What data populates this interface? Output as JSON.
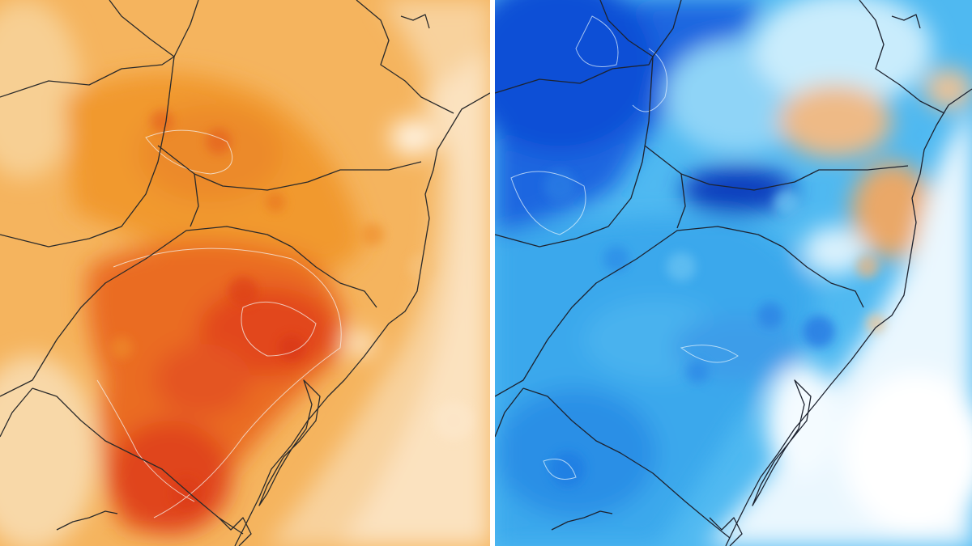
{
  "maps": [
    {
      "id": "warm-anomaly",
      "palette": [
        "#fbe3c2",
        "#f7c784",
        "#f3a94a",
        "#ee8a2c",
        "#e8651f",
        "#dd3f17"
      ]
    },
    {
      "id": "cold-anomaly",
      "palette": [
        "#ffffff",
        "#cfeefd",
        "#8fd2f6",
        "#3fb0ef",
        "#1f86e8",
        "#0b55da",
        "#0a2fa8",
        "#f0c38e",
        "#e9a25a"
      ]
    }
  ],
  "colors": {
    "divider": "#ffffff",
    "border_lines": "#2a2a2a",
    "contour_lines": "#f4f1ee"
  }
}
